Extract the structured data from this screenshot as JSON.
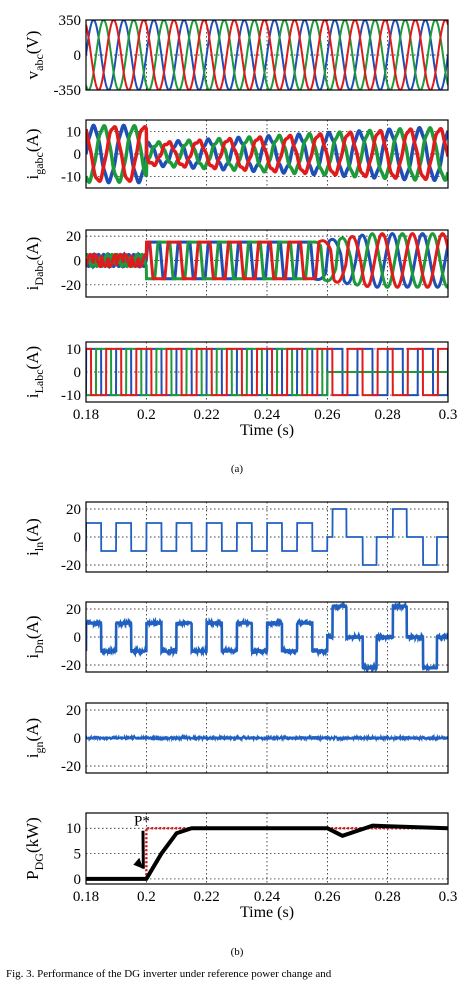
{
  "figure": {
    "label_a": "(a)",
    "label_b": "(b)",
    "caption": "Fig. 3.    Performance of the DG inverter under reference power change and"
  },
  "x_axis": {
    "label": "Time (s)",
    "ticks": [
      "0.18",
      "0.2",
      "0.22",
      "0.24",
      "0.26",
      "0.28",
      "0.3"
    ]
  },
  "colors": {
    "phase_a": "#1f4fb5",
    "phase_b": "#1f9a3a",
    "phase_c": "#e01b1b",
    "neutral": "#2060c0",
    "power": "#000000",
    "reference": "#e01b1b"
  },
  "chart_data": [
    {
      "type": "line",
      "panel": "(a)",
      "ylabel": "v_abc(V)",
      "xlim": [
        0.18,
        0.3
      ],
      "ylim": [
        -350,
        350
      ],
      "yticks": [
        "350",
        "0",
        "-350"
      ],
      "series": [
        {
          "phase": "a",
          "amplitude": 350,
          "frequency_hz": 100,
          "phase_deg": 0
        },
        {
          "phase": "b",
          "amplitude": 350,
          "frequency_hz": 100,
          "phase_deg": -120
        },
        {
          "phase": "c",
          "amplitude": 350,
          "frequency_hz": 100,
          "phase_deg": 120
        }
      ]
    },
    {
      "type": "line",
      "panel": "(a)",
      "ylabel": "i_gabc(A)",
      "xlim": [
        0.18,
        0.3
      ],
      "ylim": [
        -15,
        15
      ],
      "yticks": [
        "10",
        "0",
        "-10"
      ],
      "step_time": 0.2,
      "amplitude_before": 12,
      "amplitude_after_start": 4.5,
      "amplitude_final": 11,
      "series": [
        {
          "phase": "a"
        },
        {
          "phase": "b"
        },
        {
          "phase": "c"
        }
      ]
    },
    {
      "type": "line",
      "panel": "(a)",
      "ylabel": "i_Dabc(A)",
      "xlim": [
        0.18,
        0.3
      ],
      "ylim": [
        -30,
        25
      ],
      "yticks": [
        "20",
        "0",
        "-20"
      ],
      "step_time": 0.2,
      "peak_after": 15,
      "final_amplitude": 22,
      "series": [
        {
          "phase": "a"
        },
        {
          "phase": "b"
        },
        {
          "phase": "c"
        }
      ]
    },
    {
      "type": "line",
      "panel": "(a)",
      "ylabel": "i_Labc(A)",
      "xlim": [
        0.18,
        0.3
      ],
      "ylim": [
        -13,
        13
      ],
      "yticks": [
        "10",
        "0",
        "-10"
      ],
      "series": [
        {
          "phase": "a",
          "amplitude": 10
        },
        {
          "phase": "b",
          "amplitude": 10
        },
        {
          "phase": "c",
          "amplitude": 10
        }
      ]
    },
    {
      "type": "line",
      "panel": "(b)",
      "ylabel": "i_ln(A)",
      "xlim": [
        0.18,
        0.3
      ],
      "ylim": [
        -25,
        25
      ],
      "yticks": [
        "20",
        "0",
        "-20"
      ],
      "series": [
        {
          "name": "",
          "levels": [
            10,
            -10,
            20,
            -20
          ],
          "switch_time": 0.26
        }
      ]
    },
    {
      "type": "line",
      "panel": "(b)",
      "ylabel": "i_Dn(A)",
      "xlim": [
        0.18,
        0.3
      ],
      "ylim": [
        -25,
        25
      ],
      "yticks": [
        "20",
        "0",
        "-20"
      ],
      "series": [
        {
          "name": "",
          "levels": [
            10,
            -10,
            22,
            -22
          ],
          "switch_time": 0.26
        }
      ]
    },
    {
      "type": "line",
      "panel": "(b)",
      "ylabel": "i_gn(A)",
      "xlim": [
        0.18,
        0.3
      ],
      "ylim": [
        -25,
        25
      ],
      "yticks": [
        "20",
        "0",
        "-20"
      ],
      "series": [
        {
          "name": "",
          "mean": 0,
          "noise": 1.2
        }
      ]
    },
    {
      "type": "line",
      "panel": "(b)",
      "ylabel": "P_DG(kW)",
      "xlim": [
        0.18,
        0.3
      ],
      "ylim": [
        -1,
        13
      ],
      "yticks": [
        "10",
        "5",
        "0"
      ],
      "annotation": "P*",
      "series": [
        {
          "name": "reference",
          "x": [
            0.18,
            0.2,
            0.2,
            0.3
          ],
          "y": [
            0,
            0,
            10,
            10
          ]
        },
        {
          "name": "measured",
          "x": [
            0.18,
            0.2,
            0.205,
            0.21,
            0.215,
            0.26,
            0.265,
            0.27,
            0.275,
            0.3
          ],
          "y": [
            0,
            0,
            5,
            9,
            10,
            10,
            8.5,
            9.5,
            10.5,
            10
          ]
        }
      ]
    }
  ]
}
